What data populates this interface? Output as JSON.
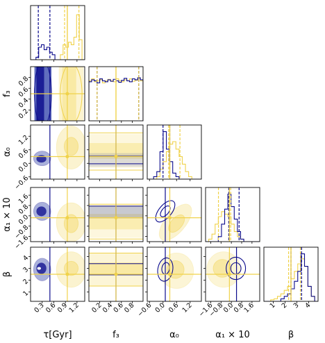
{
  "chart_data": {
    "type": "corner",
    "parameters": [
      {
        "key": "tau",
        "label": "τ[Gyr]",
        "range": [
          0.0,
          1.4
        ],
        "ticks": [
          "0.3",
          "0.6",
          "0.9",
          "1.2"
        ]
      },
      {
        "key": "f3",
        "label": "f₃",
        "range": [
          0.0,
          1.0
        ],
        "ticks": [
          "0.2",
          "0.4",
          "0.6",
          "0.8"
        ]
      },
      {
        "key": "alpha0",
        "label": "α₀",
        "range": [
          -0.7,
          1.7
        ],
        "ticks": [
          "−0.6",
          "0.0",
          "0.6",
          "1.2"
        ]
      },
      {
        "key": "alpha1",
        "label": "α₁ × 10",
        "range": [
          -2.0,
          2.2
        ],
        "ticks": [
          "−1.6",
          "−0.8",
          "0.0",
          "0.8",
          "1.6"
        ]
      },
      {
        "key": "beta",
        "label": "β",
        "range": [
          0.2,
          4.8
        ],
        "ticks": [
          "1",
          "2",
          "3",
          "4"
        ]
      }
    ],
    "series": [
      {
        "name": "",
        "color": "#0a0a8c",
        "truth": [
          0.5,
          0.5,
          0.1,
          0.4,
          3.0
        ],
        "quantiles": [
          [
            0.2,
            0.5
          ],
          [
            0.15,
            0.92
          ],
          [
            0.0,
            0.3
          ],
          [
            -0.2,
            0.6
          ],
          [
            2.5,
            3.4
          ]
        ]
      },
      {
        "name": "",
        "color": "#f0d24a",
        "truth": [
          0.95,
          0.5,
          0.3,
          -0.15,
          2.5
        ],
        "quantiles": [
          [
            0.88,
            1.25
          ],
          [
            0.15,
            0.92
          ],
          [
            0.25,
            0.75
          ],
          [
            -1.0,
            -0.05
          ],
          [
            2.3,
            3.3
          ]
        ]
      }
    ],
    "histograms": {
      "tau": {
        "blue": [
          0,
          0,
          0.05,
          0.25,
          0.3,
          0.2,
          0.25,
          0.15,
          0.1,
          0,
          0,
          0,
          0,
          0,
          0,
          0,
          0,
          0,
          0,
          0
        ],
        "yellow": [
          0,
          0,
          0,
          0,
          0,
          0,
          0,
          0,
          0,
          0,
          0,
          0.1,
          0.3,
          0.25,
          0.35,
          0.3,
          0.45,
          0.9,
          0.4,
          0
        ]
      },
      "f3": {
        "blue": [
          0.78,
          0.82,
          0.8,
          0.76,
          0.84,
          0.8,
          0.78,
          0.82,
          0.79,
          0.83,
          0.8,
          0.77,
          0.81,
          0.85,
          0.8,
          0.78,
          0.84,
          0.82,
          0.86,
          0.82
        ],
        "yellow": [
          0.8,
          0.84,
          0.78,
          0.8,
          0.82,
          0.76,
          0.8,
          0.83,
          0.8,
          0.78,
          0.84,
          0.8,
          0.78,
          0.82,
          0.8,
          0.84,
          0.79,
          0.81,
          0.85,
          0.8
        ]
      },
      "alpha0": {
        "blue": [
          0,
          0,
          0.05,
          0.15,
          0.55,
          0.95,
          0.6,
          0.35,
          0.12,
          0.05,
          0,
          0,
          0,
          0,
          0,
          0,
          0
        ],
        "yellow": [
          0,
          0,
          0,
          0.05,
          0.2,
          0.35,
          0.55,
          0.7,
          0.75,
          0.6,
          0.45,
          0.3,
          0.15,
          0.05,
          0,
          0,
          0
        ]
      },
      "alpha1": {
        "blue": [
          0,
          0,
          0,
          0,
          0.1,
          0.35,
          0.65,
          0.95,
          0.7,
          0.45,
          0.2,
          0.05,
          0,
          0,
          0,
          0,
          0
        ],
        "yellow": [
          0,
          0.05,
          0.15,
          0.35,
          0.5,
          0.6,
          0.55,
          0.5,
          0.35,
          0.2,
          0.1,
          0.05,
          0,
          0,
          0,
          0,
          0
        ]
      },
      "beta": {
        "blue": [
          0,
          0,
          0,
          0,
          0,
          0.05,
          0.1,
          0.15,
          0.25,
          0.4,
          0.6,
          0.95,
          0.7,
          0.3,
          0.1,
          0
        ],
        "yellow": [
          0,
          0,
          0.03,
          0.05,
          0.1,
          0.15,
          0.22,
          0.3,
          0.45,
          0.6,
          0.75,
          0.85,
          0.7,
          0.3,
          0.1,
          0
        ]
      }
    },
    "grid": false,
    "legend": "none"
  },
  "colors": {
    "blue": "#0a0a8c",
    "blue_fill": "#2b3ea8",
    "yellow": "#f0d24a",
    "yellow_fill": "#f6df7a"
  }
}
